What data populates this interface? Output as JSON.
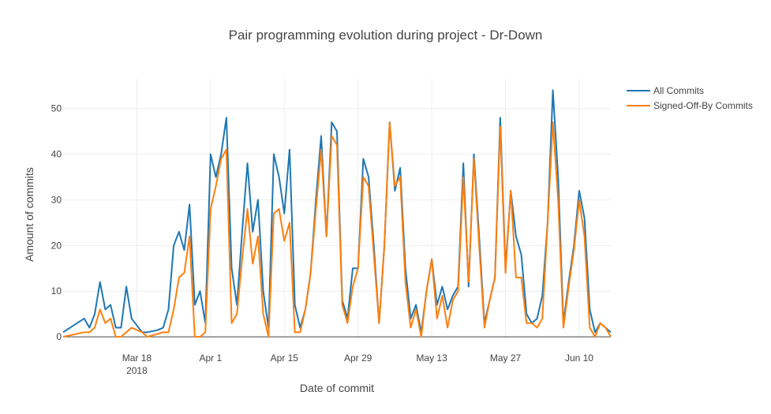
{
  "chart_data": {
    "type": "line",
    "title": "Pair programming evolution during project - Dr-Down",
    "xlabel": "Date of commit",
    "ylabel": "Amount of commits",
    "x_start": "2018-03-04",
    "x_end": "2018-06-16",
    "ylim": [
      -0.5,
      56.5
    ],
    "yticks": [
      0,
      10,
      20,
      30,
      40,
      50
    ],
    "xticks": [
      {
        "date": "2018-03-18",
        "label": "Mar 18",
        "sublabel": "2018"
      },
      {
        "date": "2018-04-01",
        "label": "Apr 1",
        "sublabel": ""
      },
      {
        "date": "2018-04-15",
        "label": "Apr 15",
        "sublabel": ""
      },
      {
        "date": "2018-04-29",
        "label": "Apr 29",
        "sublabel": ""
      },
      {
        "date": "2018-05-13",
        "label": "May 13",
        "sublabel": ""
      },
      {
        "date": "2018-05-27",
        "label": "May 27",
        "sublabel": ""
      },
      {
        "date": "2018-06-10",
        "label": "Jun 10",
        "sublabel": ""
      }
    ],
    "grid": true,
    "legend_position": "top-right",
    "series": [
      {
        "name": "All Commits",
        "color": "#1f77b4",
        "points": [
          [
            "2018-03-04",
            1
          ],
          [
            "2018-03-08",
            4
          ],
          [
            "2018-03-09",
            2
          ],
          [
            "2018-03-10",
            5
          ],
          [
            "2018-03-11",
            12
          ],
          [
            "2018-03-12",
            6
          ],
          [
            "2018-03-13",
            7
          ],
          [
            "2018-03-14",
            2
          ],
          [
            "2018-03-15",
            2
          ],
          [
            "2018-03-16",
            11
          ],
          [
            "2018-03-17",
            4
          ],
          [
            "2018-03-19",
            1
          ],
          [
            "2018-03-20",
            1
          ],
          [
            "2018-03-22",
            1.5
          ],
          [
            "2018-03-23",
            2
          ],
          [
            "2018-03-24",
            6
          ],
          [
            "2018-03-25",
            20
          ],
          [
            "2018-03-26",
            23
          ],
          [
            "2018-03-27",
            19
          ],
          [
            "2018-03-28",
            29
          ],
          [
            "2018-03-29",
            7
          ],
          [
            "2018-03-30",
            10
          ],
          [
            "2018-03-31",
            3
          ],
          [
            "2018-04-01",
            40
          ],
          [
            "2018-04-02",
            35
          ],
          [
            "2018-04-03",
            40
          ],
          [
            "2018-04-04",
            48
          ],
          [
            "2018-04-05",
            15
          ],
          [
            "2018-04-06",
            7
          ],
          [
            "2018-04-07",
            23
          ],
          [
            "2018-04-08",
            38
          ],
          [
            "2018-04-09",
            23
          ],
          [
            "2018-04-10",
            30
          ],
          [
            "2018-04-11",
            10
          ],
          [
            "2018-04-12",
            2
          ],
          [
            "2018-04-13",
            40
          ],
          [
            "2018-04-14",
            35
          ],
          [
            "2018-04-15",
            27
          ],
          [
            "2018-04-16",
            41
          ],
          [
            "2018-04-17",
            7
          ],
          [
            "2018-04-18",
            2
          ],
          [
            "2018-04-19",
            6
          ],
          [
            "2018-04-20",
            14
          ],
          [
            "2018-04-21",
            30
          ],
          [
            "2018-04-22",
            44
          ],
          [
            "2018-04-23",
            22
          ],
          [
            "2018-04-24",
            47
          ],
          [
            "2018-04-25",
            45
          ],
          [
            "2018-04-26",
            8
          ],
          [
            "2018-04-27",
            4
          ],
          [
            "2018-04-28",
            15
          ],
          [
            "2018-04-29",
            15
          ],
          [
            "2018-04-30",
            39
          ],
          [
            "2018-05-01",
            35
          ],
          [
            "2018-05-02",
            20
          ],
          [
            "2018-05-03",
            3
          ],
          [
            "2018-05-04",
            20
          ],
          [
            "2018-05-05",
            47
          ],
          [
            "2018-05-06",
            32
          ],
          [
            "2018-05-07",
            37
          ],
          [
            "2018-05-08",
            15
          ],
          [
            "2018-05-09",
            4
          ],
          [
            "2018-05-10",
            7
          ],
          [
            "2018-05-11",
            1
          ],
          [
            "2018-05-12",
            10
          ],
          [
            "2018-05-13",
            17
          ],
          [
            "2018-05-14",
            7
          ],
          [
            "2018-05-15",
            11
          ],
          [
            "2018-05-16",
            6
          ],
          [
            "2018-05-17",
            9
          ],
          [
            "2018-05-18",
            11
          ],
          [
            "2018-05-19",
            38
          ],
          [
            "2018-05-20",
            11
          ],
          [
            "2018-05-21",
            40
          ],
          [
            "2018-05-22",
            22
          ],
          [
            "2018-05-23",
            3
          ],
          [
            "2018-05-24",
            8
          ],
          [
            "2018-05-25",
            13
          ],
          [
            "2018-05-26",
            48
          ],
          [
            "2018-05-27",
            15
          ],
          [
            "2018-05-28",
            32
          ],
          [
            "2018-05-29",
            22
          ],
          [
            "2018-05-30",
            18
          ],
          [
            "2018-05-31",
            5
          ],
          [
            "2018-06-01",
            3
          ],
          [
            "2018-06-02",
            4
          ],
          [
            "2018-06-03",
            9
          ],
          [
            "2018-06-04",
            25
          ],
          [
            "2018-06-05",
            54
          ],
          [
            "2018-06-06",
            35
          ],
          [
            "2018-06-07",
            3
          ],
          [
            "2018-06-08",
            12
          ],
          [
            "2018-06-09",
            20
          ],
          [
            "2018-06-10",
            32
          ],
          [
            "2018-06-11",
            26
          ],
          [
            "2018-06-12",
            6
          ],
          [
            "2018-06-13",
            1
          ],
          [
            "2018-06-14",
            3
          ],
          [
            "2018-06-16",
            1
          ]
        ]
      },
      {
        "name": "Signed-Off-By Commits",
        "color": "#ff7f0e",
        "points": [
          [
            "2018-03-04",
            0
          ],
          [
            "2018-03-08",
            1
          ],
          [
            "2018-03-09",
            1
          ],
          [
            "2018-03-10",
            2
          ],
          [
            "2018-03-11",
            6
          ],
          [
            "2018-03-12",
            3
          ],
          [
            "2018-03-13",
            4
          ],
          [
            "2018-03-14",
            0
          ],
          [
            "2018-03-15",
            0
          ],
          [
            "2018-03-17",
            2
          ],
          [
            "2018-03-19",
            1
          ],
          [
            "2018-03-20",
            0
          ],
          [
            "2018-03-23",
            1
          ],
          [
            "2018-03-24",
            1
          ],
          [
            "2018-03-25",
            6
          ],
          [
            "2018-03-26",
            13
          ],
          [
            "2018-03-27",
            14
          ],
          [
            "2018-03-28",
            22
          ],
          [
            "2018-03-29",
            0
          ],
          [
            "2018-03-30",
            0
          ],
          [
            "2018-03-31",
            1
          ],
          [
            "2018-04-01",
            28
          ],
          [
            "2018-04-02",
            33
          ],
          [
            "2018-04-03",
            39
          ],
          [
            "2018-04-04",
            41
          ],
          [
            "2018-04-05",
            3
          ],
          [
            "2018-04-06",
            5
          ],
          [
            "2018-04-07",
            17
          ],
          [
            "2018-04-08",
            28
          ],
          [
            "2018-04-09",
            16
          ],
          [
            "2018-04-10",
            22
          ],
          [
            "2018-04-11",
            5
          ],
          [
            "2018-04-12",
            0
          ],
          [
            "2018-04-13",
            27
          ],
          [
            "2018-04-14",
            28
          ],
          [
            "2018-04-15",
            21
          ],
          [
            "2018-04-16",
            25
          ],
          [
            "2018-04-17",
            1
          ],
          [
            "2018-04-18",
            1
          ],
          [
            "2018-04-19",
            6
          ],
          [
            "2018-04-20",
            14
          ],
          [
            "2018-04-21",
            28
          ],
          [
            "2018-04-22",
            41
          ],
          [
            "2018-04-23",
            22
          ],
          [
            "2018-04-24",
            44
          ],
          [
            "2018-04-25",
            42
          ],
          [
            "2018-04-26",
            7
          ],
          [
            "2018-04-27",
            3
          ],
          [
            "2018-04-28",
            11
          ],
          [
            "2018-04-29",
            15
          ],
          [
            "2018-04-30",
            35
          ],
          [
            "2018-05-01",
            33
          ],
          [
            "2018-05-02",
            18
          ],
          [
            "2018-05-03",
            3
          ],
          [
            "2018-05-04",
            20
          ],
          [
            "2018-05-05",
            47
          ],
          [
            "2018-05-06",
            33
          ],
          [
            "2018-05-07",
            35
          ],
          [
            "2018-05-08",
            12
          ],
          [
            "2018-05-09",
            2
          ],
          [
            "2018-05-10",
            6
          ],
          [
            "2018-05-11",
            0
          ],
          [
            "2018-05-12",
            10
          ],
          [
            "2018-05-13",
            17
          ],
          [
            "2018-05-14",
            4
          ],
          [
            "2018-05-15",
            9
          ],
          [
            "2018-05-16",
            2
          ],
          [
            "2018-05-17",
            8
          ],
          [
            "2018-05-18",
            10
          ],
          [
            "2018-05-19",
            35
          ],
          [
            "2018-05-20",
            12
          ],
          [
            "2018-05-21",
            39
          ],
          [
            "2018-05-22",
            20
          ],
          [
            "2018-05-23",
            2
          ],
          [
            "2018-05-24",
            8
          ],
          [
            "2018-05-25",
            13
          ],
          [
            "2018-05-26",
            46
          ],
          [
            "2018-05-27",
            14
          ],
          [
            "2018-05-28",
            32
          ],
          [
            "2018-05-29",
            13
          ],
          [
            "2018-05-30",
            13
          ],
          [
            "2018-05-31",
            3
          ],
          [
            "2018-06-01",
            3
          ],
          [
            "2018-06-02",
            2
          ],
          [
            "2018-06-03",
            4
          ],
          [
            "2018-06-04",
            25
          ],
          [
            "2018-06-05",
            47
          ],
          [
            "2018-06-06",
            30
          ],
          [
            "2018-06-07",
            2
          ],
          [
            "2018-06-08",
            11
          ],
          [
            "2018-06-09",
            19
          ],
          [
            "2018-06-10",
            30
          ],
          [
            "2018-06-11",
            22
          ],
          [
            "2018-06-12",
            2
          ],
          [
            "2018-06-13",
            0
          ],
          [
            "2018-06-14",
            3
          ],
          [
            "2018-06-15",
            2
          ],
          [
            "2018-06-16",
            0
          ]
        ]
      }
    ]
  }
}
